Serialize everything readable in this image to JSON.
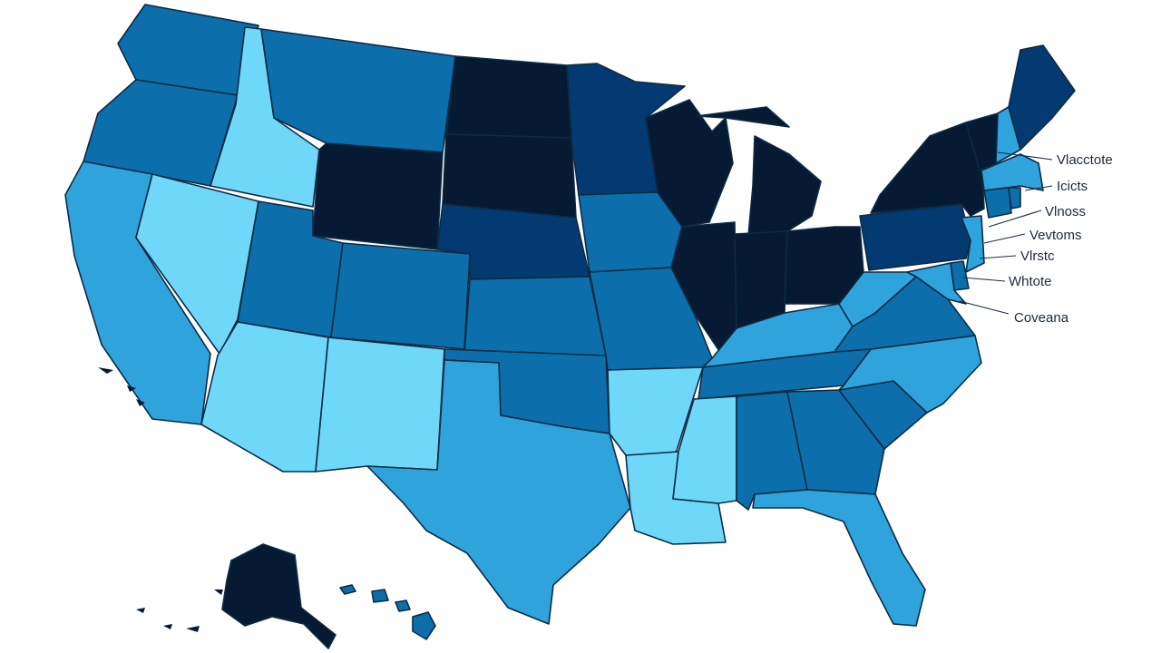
{
  "palette": {
    "c1": "#6fd8f8",
    "c2": "#2fa3dc",
    "c3": "#0c6fab",
    "c4": "#043a72",
    "c5": "#061a33",
    "border": "#0d2a44",
    "background": "#ffffff"
  },
  "states": [
    {
      "name": "WA",
      "level": "c3"
    },
    {
      "name": "OR",
      "level": "c3"
    },
    {
      "name": "CA",
      "level": "c2"
    },
    {
      "name": "ID",
      "level": "c1"
    },
    {
      "name": "NV",
      "level": "c1"
    },
    {
      "name": "MT",
      "level": "c3"
    },
    {
      "name": "WY",
      "level": "c5"
    },
    {
      "name": "UT",
      "level": "c3"
    },
    {
      "name": "AZ",
      "level": "c1"
    },
    {
      "name": "CO",
      "level": "c3"
    },
    {
      "name": "NM",
      "level": "c1"
    },
    {
      "name": "ND",
      "level": "c5"
    },
    {
      "name": "SD",
      "level": "c5"
    },
    {
      "name": "NE",
      "level": "c4"
    },
    {
      "name": "KS",
      "level": "c3"
    },
    {
      "name": "OK",
      "level": "c3"
    },
    {
      "name": "TX",
      "level": "c2"
    },
    {
      "name": "MN",
      "level": "c4"
    },
    {
      "name": "IA",
      "level": "c3"
    },
    {
      "name": "MO",
      "level": "c3"
    },
    {
      "name": "AR",
      "level": "c1"
    },
    {
      "name": "LA",
      "level": "c1"
    },
    {
      "name": "WI",
      "level": "c5"
    },
    {
      "name": "MI",
      "level": "c5"
    },
    {
      "name": "IL",
      "level": "c5"
    },
    {
      "name": "IN",
      "level": "c5"
    },
    {
      "name": "OH",
      "level": "c5"
    },
    {
      "name": "KY",
      "level": "c2"
    },
    {
      "name": "TN",
      "level": "c3"
    },
    {
      "name": "MS",
      "level": "c1"
    },
    {
      "name": "AL",
      "level": "c3"
    },
    {
      "name": "GA",
      "level": "c3"
    },
    {
      "name": "FL",
      "level": "c2"
    },
    {
      "name": "SC",
      "level": "c3"
    },
    {
      "name": "NC",
      "level": "c2"
    },
    {
      "name": "VA",
      "level": "c3"
    },
    {
      "name": "WV",
      "level": "c2"
    },
    {
      "name": "PA",
      "level": "c4"
    },
    {
      "name": "NY",
      "level": "c5"
    },
    {
      "name": "VT",
      "level": "c5"
    },
    {
      "name": "NH",
      "level": "c2"
    },
    {
      "name": "ME",
      "level": "c4"
    },
    {
      "name": "MA",
      "level": "c2"
    },
    {
      "name": "CT",
      "level": "c3"
    },
    {
      "name": "RI",
      "level": "c3"
    },
    {
      "name": "NJ",
      "level": "c2"
    },
    {
      "name": "DE",
      "level": "c3"
    },
    {
      "name": "MD",
      "level": "c2"
    },
    {
      "name": "AK",
      "level": "c5"
    },
    {
      "name": "HI",
      "level": "c3"
    }
  ],
  "callouts": [
    {
      "label": "Vlacctote"
    },
    {
      "label": "Icicts"
    },
    {
      "label": "Vlnoss"
    },
    {
      "label": "Vevtoms"
    },
    {
      "label": "Vlrstc"
    },
    {
      "label": "Whtote"
    },
    {
      "label": "Coveana"
    }
  ]
}
